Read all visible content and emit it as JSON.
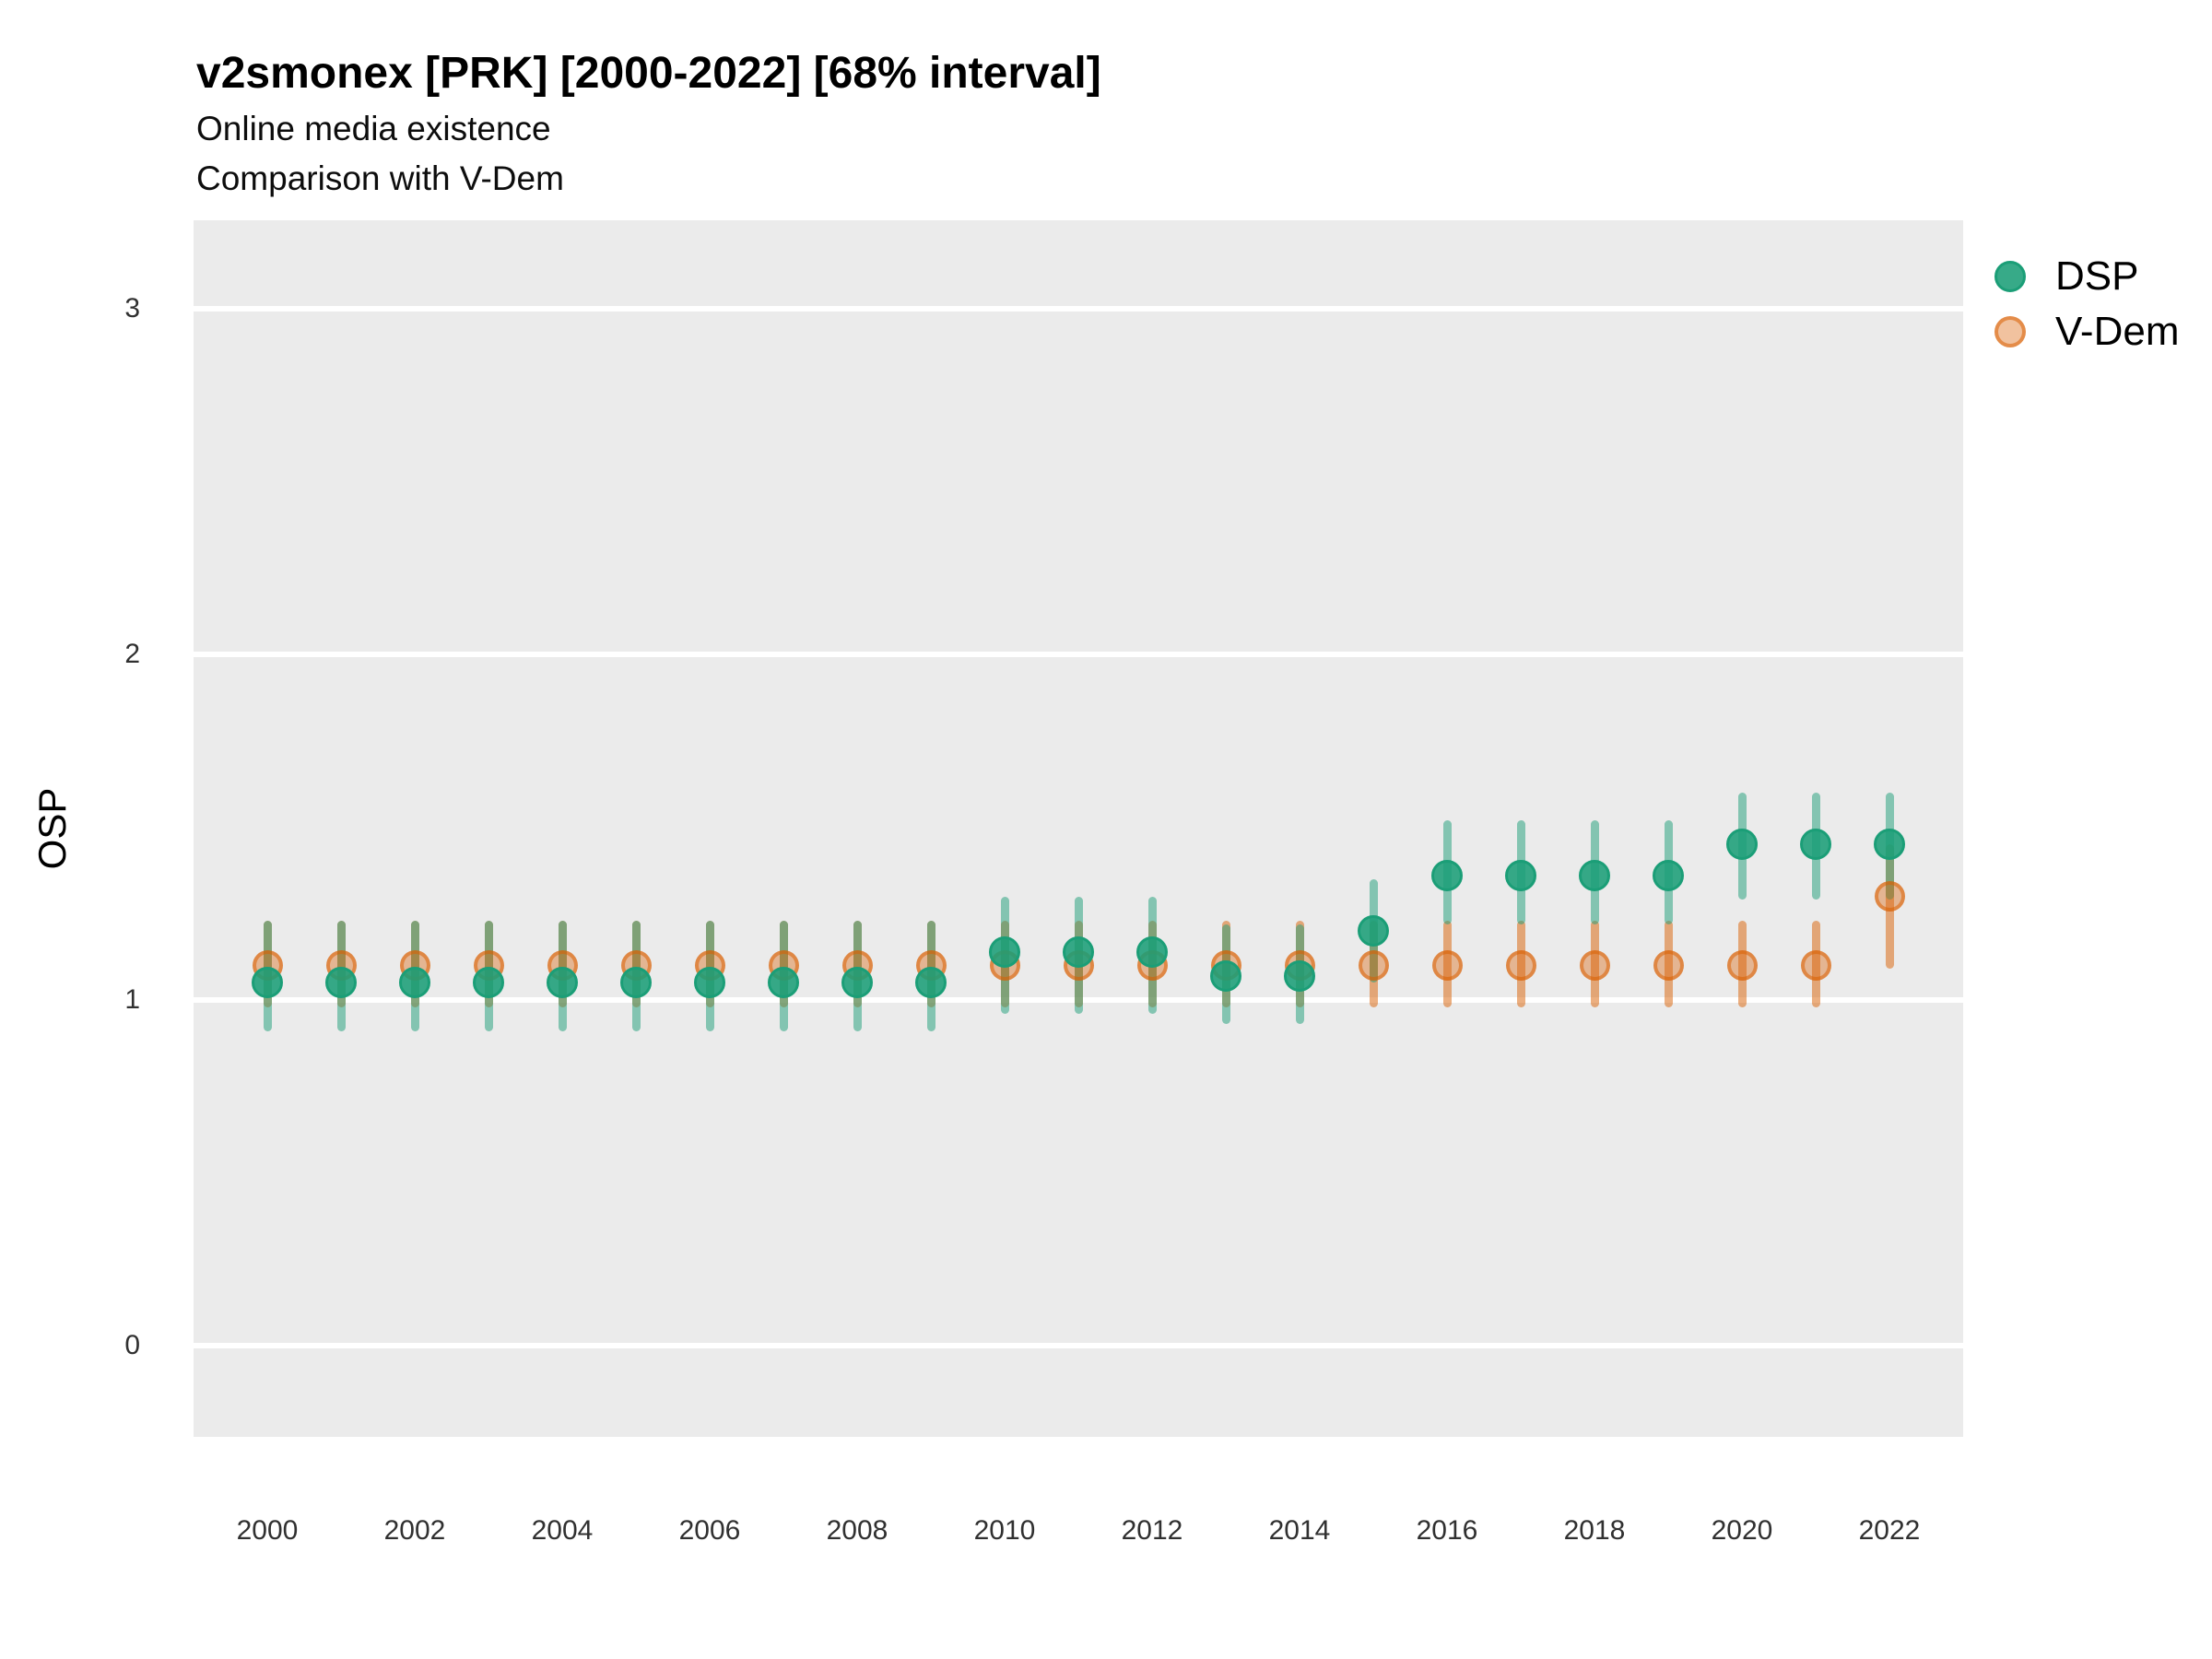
{
  "header": {
    "title": "v2smonex [PRK] [2000-2022] [68% interval]",
    "subtitle": "Online media existence",
    "subtitle2": "Comparison with V-Dem"
  },
  "chart_data": {
    "type": "scatter",
    "title": "v2smonex [PRK] [2000-2022] [68% interval]",
    "subtitle": "Online media existence",
    "comparison_note": "Comparison with V-Dem",
    "interval": "68%",
    "xlabel": "",
    "ylabel": "OSP",
    "x": [
      2000,
      2001,
      2002,
      2003,
      2004,
      2005,
      2006,
      2007,
      2008,
      2009,
      2010,
      2011,
      2012,
      2013,
      2014,
      2015,
      2016,
      2017,
      2018,
      2019,
      2020,
      2021,
      2022
    ],
    "series": [
      {
        "name": "DSP",
        "color": "#1b9e77",
        "values": [
          1.05,
          1.05,
          1.05,
          1.05,
          1.05,
          1.05,
          1.05,
          1.05,
          1.05,
          1.05,
          1.14,
          1.14,
          1.14,
          1.07,
          1.07,
          1.2,
          1.36,
          1.36,
          1.36,
          1.36,
          1.45,
          1.45,
          1.45
        ],
        "lower": [
          0.91,
          0.91,
          0.91,
          0.91,
          0.91,
          0.91,
          0.91,
          0.91,
          0.91,
          0.91,
          0.96,
          0.96,
          0.96,
          0.93,
          0.93,
          1.05,
          1.22,
          1.22,
          1.22,
          1.22,
          1.29,
          1.29,
          1.29
        ],
        "upper": [
          1.23,
          1.23,
          1.23,
          1.23,
          1.23,
          1.23,
          1.23,
          1.23,
          1.23,
          1.23,
          1.3,
          1.3,
          1.3,
          1.22,
          1.22,
          1.35,
          1.52,
          1.52,
          1.52,
          1.52,
          1.6,
          1.6,
          1.6
        ]
      },
      {
        "name": "V-Dem",
        "color": "#d95f02",
        "values": [
          1.1,
          1.1,
          1.1,
          1.1,
          1.1,
          1.1,
          1.1,
          1.1,
          1.1,
          1.1,
          1.1,
          1.1,
          1.1,
          1.1,
          1.1,
          1.1,
          1.1,
          1.1,
          1.1,
          1.1,
          1.1,
          1.1,
          1.3
        ],
        "lower": [
          0.98,
          0.98,
          0.98,
          0.98,
          0.98,
          0.98,
          0.98,
          0.98,
          0.98,
          0.98,
          0.98,
          0.98,
          0.98,
          0.98,
          0.98,
          0.98,
          0.98,
          0.98,
          0.98,
          0.98,
          0.98,
          0.98,
          1.09
        ],
        "upper": [
          1.23,
          1.23,
          1.23,
          1.23,
          1.23,
          1.23,
          1.23,
          1.23,
          1.23,
          1.23,
          1.23,
          1.23,
          1.23,
          1.23,
          1.23,
          1.23,
          1.23,
          1.23,
          1.23,
          1.23,
          1.23,
          1.23,
          1.45
        ]
      }
    ],
    "xticks": [
      2000,
      2002,
      2004,
      2006,
      2008,
      2010,
      2012,
      2014,
      2016,
      2018,
      2020,
      2022
    ],
    "yticks": [
      0,
      1,
      2,
      3
    ],
    "ylim": [
      -0.26,
      3.26
    ],
    "grid": "major-horizontal-only",
    "legend_position": "right-top"
  },
  "style": {
    "panel_bg": "#ebebeb",
    "gridline_color": "#ffffff",
    "dsp_point_fill": "rgba(27,158,119,0.88)",
    "dsp_point_stroke": "rgba(27,158,119,1)",
    "dsp_bar": "rgba(27,158,119,0.5)",
    "vdem_point_fill": "rgba(217,95,2,0.38)",
    "vdem_point_stroke": "rgba(217,95,2,0.55)",
    "vdem_bar": "rgba(217,95,2,0.5)"
  }
}
